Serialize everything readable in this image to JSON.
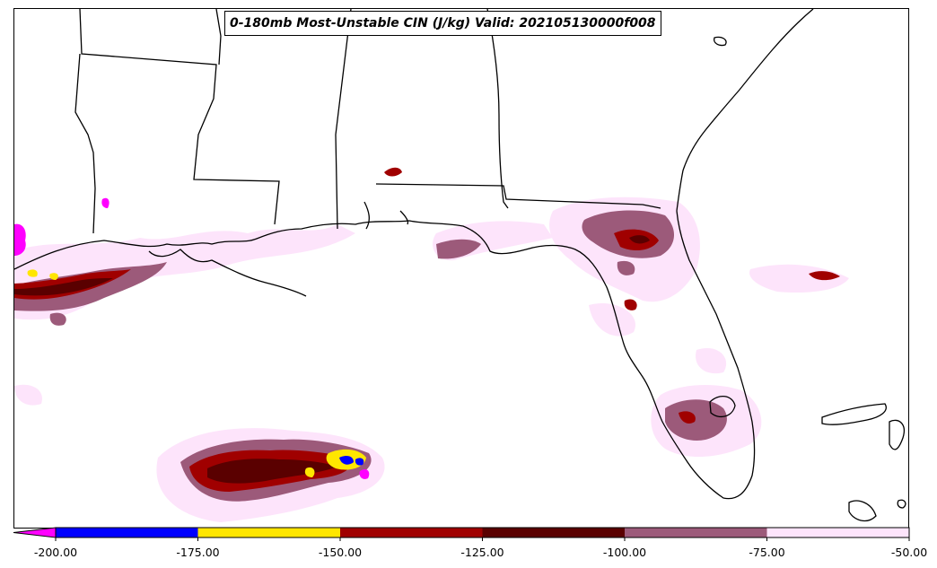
{
  "title": "0-180mb Most-Unstable CIN (J/kg) Valid: 202105130000f008",
  "colorbar": {
    "extend": "min",
    "under_color": "#ff00ff",
    "ticks": [
      "-200.00",
      "-175.00",
      "-150.00",
      "-125.00",
      "-100.00",
      "-75.00",
      "-50.00"
    ],
    "bins": [
      {
        "from": -200,
        "to": -175,
        "color": "#0000ff"
      },
      {
        "from": -175,
        "to": -150,
        "color": "#ffe600"
      },
      {
        "from": -150,
        "to": -125,
        "color": "#a00000"
      },
      {
        "from": -125,
        "to": -100,
        "color": "#5a0000"
      },
      {
        "from": -100,
        "to": -75,
        "color": "#9c5a7a"
      },
      {
        "from": -75,
        "to": -50,
        "color": "#fde4fb"
      }
    ]
  }
}
